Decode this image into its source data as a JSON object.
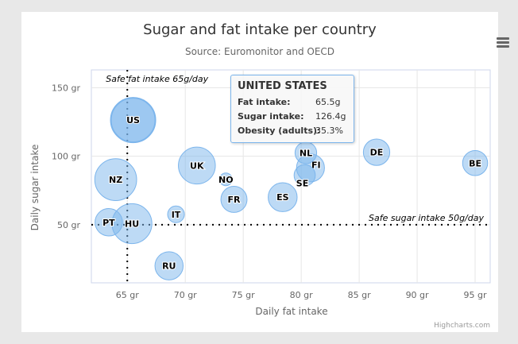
{
  "chart_data": {
    "type": "bubble",
    "title": "Sugar and fat intake per country",
    "subtitle": "Source: Euromonitor and OECD",
    "xlabel": "Daily fat intake",
    "ylabel": "Daily sugar intake",
    "xlim": [
      61.9,
      96.3
    ],
    "ylim": [
      7.6,
      163
    ],
    "xticks": [
      65,
      70,
      75,
      80,
      85,
      90,
      95
    ],
    "yticks": [
      50,
      100,
      150
    ],
    "tick_suffix": " gr",
    "grid": true,
    "legend": "none",
    "color": "#7cb5ec",
    "points": [
      {
        "x": 95,
        "y": 95,
        "z": 13.8,
        "name": "BE"
      },
      {
        "x": 86.5,
        "y": 102.9,
        "z": 14.7,
        "name": "DE"
      },
      {
        "x": 80.8,
        "y": 91.5,
        "z": 15.8,
        "name": "FI"
      },
      {
        "x": 80.4,
        "y": 102.5,
        "z": 12,
        "name": "NL"
      },
      {
        "x": 80.3,
        "y": 86.1,
        "z": 11.8,
        "name": "SE"
      },
      {
        "x": 78.4,
        "y": 70.1,
        "z": 16.6,
        "name": "ES"
      },
      {
        "x": 74.2,
        "y": 68.5,
        "z": 14.5,
        "name": "FR"
      },
      {
        "x": 73.5,
        "y": 83.1,
        "z": 10,
        "name": "NO"
      },
      {
        "x": 71,
        "y": 93.2,
        "z": 24.7,
        "name": "UK"
      },
      {
        "x": 69.2,
        "y": 57.6,
        "z": 10.4,
        "name": "IT"
      },
      {
        "x": 68.6,
        "y": 20,
        "z": 16,
        "name": "RU"
      },
      {
        "x": 65.5,
        "y": 126.4,
        "z": 35.3,
        "name": "US"
      },
      {
        "x": 65.4,
        "y": 50.8,
        "z": 28.5,
        "name": "HU"
      },
      {
        "x": 63.4,
        "y": 51.8,
        "z": 15.4,
        "name": "PT"
      },
      {
        "x": 64,
        "y": 82.9,
        "z": 31.3,
        "name": "NZ"
      }
    ],
    "plot_lines": [
      {
        "axis": "x",
        "value": 65,
        "label": "Safe fat intake 65g/day"
      },
      {
        "axis": "y",
        "value": 50,
        "label": "Safe sugar intake 50g/day"
      }
    ],
    "credits": "Highcharts.com"
  },
  "tooltip": {
    "title": "UNITED STATES",
    "rows": [
      {
        "label": "Fat intake:",
        "value": "65.5g"
      },
      {
        "label": "Sugar intake:",
        "value": "126.4g"
      },
      {
        "label": "Obesity (adults):",
        "value": "35.3%"
      }
    ]
  },
  "menu_icon": "hamburger-menu-icon"
}
